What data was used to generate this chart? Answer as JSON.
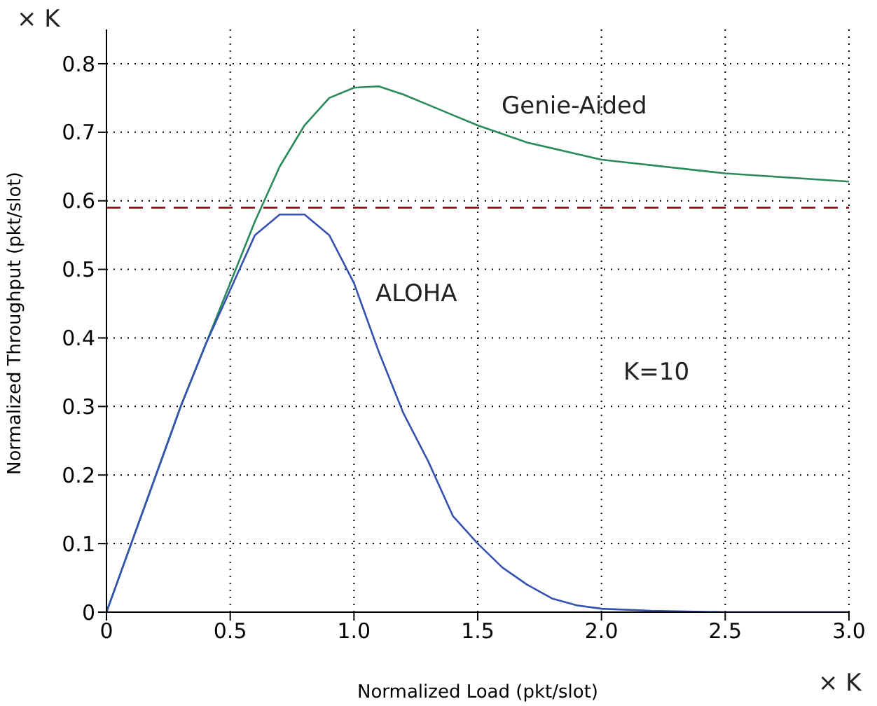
{
  "chart_data": {
    "type": "line",
    "xlabel": "Normalized Load (pkt/slot)",
    "ylabel": "Normalized Throughput (pkt/slot)",
    "xlim": [
      0,
      3
    ],
    "xticks": [
      {
        "value": 0,
        "label": "0"
      },
      {
        "value": 0.5,
        "label": "0.5"
      },
      {
        "value": 1,
        "label": "1.0"
      },
      {
        "value": 1.5,
        "label": "1.5"
      },
      {
        "value": 2,
        "label": "2.0"
      },
      {
        "value": 2.5,
        "label": "2.5"
      },
      {
        "value": 3,
        "label": "3.0"
      }
    ],
    "ylim": [
      0,
      0.85
    ],
    "yticks": [
      0,
      0.1,
      0.2,
      0.3,
      0.4,
      0.5,
      0.6,
      0.7,
      0.8
    ],
    "grid": true,
    "line_style": "solid",
    "marker": "none",
    "series": [
      {
        "color": "#2a8a5c",
        "x": [
          0,
          0.1,
          0.2,
          0.3,
          0.4,
          0.5,
          0.6,
          0.7,
          0.8,
          0.9,
          1.0,
          1.1,
          1.2,
          1.3,
          1.4,
          1.5,
          1.7,
          2.0,
          2.5,
          3.0
        ],
        "values": [
          0,
          0.1,
          0.2,
          0.3,
          0.39,
          0.48,
          0.57,
          0.65,
          0.71,
          0.75,
          0.765,
          0.767,
          0.755,
          0.74,
          0.725,
          0.71,
          0.685,
          0.66,
          0.64,
          0.628
        ]
      },
      {
        "color": "#3552b0",
        "x": [
          0,
          0.1,
          0.2,
          0.3,
          0.4,
          0.5,
          0.6,
          0.7,
          0.8,
          0.9,
          1.0,
          1.1,
          1.2,
          1.3,
          1.4,
          1.5,
          1.6,
          1.7,
          1.8,
          1.9,
          2.0,
          2.2,
          2.5,
          3.0
        ],
        "values": [
          0,
          0.1,
          0.2,
          0.3,
          0.39,
          0.47,
          0.55,
          0.58,
          0.58,
          0.55,
          0.48,
          0.38,
          0.29,
          0.22,
          0.14,
          0.1,
          0.065,
          0.04,
          0.02,
          0.01,
          0.005,
          0.002,
          0,
          0
        ]
      }
    ],
    "ref_lines": [
      {
        "axis": "y",
        "value": 0.59,
        "color": "#800000",
        "line_style": "dashed"
      }
    ],
    "annotations": [
      "Genie-Aided",
      "ALOHA",
      "K=10",
      "× K",
      "× K"
    ]
  }
}
